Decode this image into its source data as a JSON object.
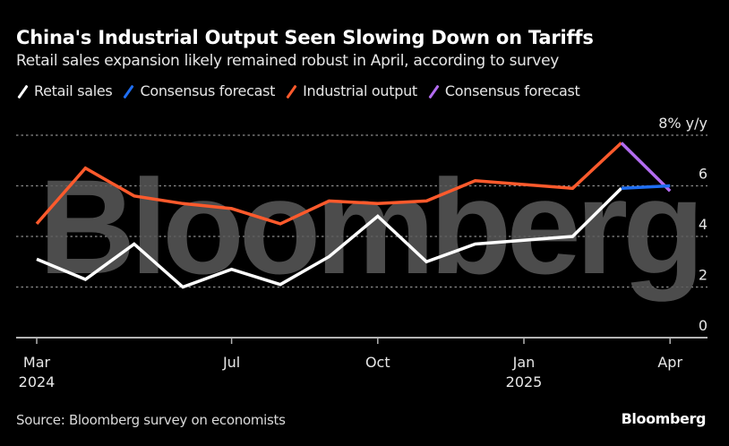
{
  "header": {
    "title": "China's Industrial Output Seen Slowing Down on Tariffs",
    "subtitle": "Retail sales expansion likely remained robust in April, according to survey"
  },
  "footer": {
    "source": "Source: Bloomberg survey on economists",
    "brand": "Bloomberg"
  },
  "watermark": "Bloomberg",
  "colors": {
    "background": "#000000",
    "retail_sales": "#ffffff",
    "retail_forecast": "#1f6ef2",
    "industrial_output": "#ff5a2c",
    "industrial_forecast": "#b36cf0",
    "grid": "#8c8c8c",
    "watermark": "#595959"
  },
  "chart_data": {
    "type": "line",
    "title": "China's Industrial Output Seen Slowing Down on Tariffs",
    "subtitle": "Retail sales expansion likely remained robust in April, according to survey",
    "xlabel": "",
    "ylabel": "% y/y",
    "y_unit_label": "8% y/y",
    "ylim": [
      0,
      8
    ],
    "yticks": [
      0,
      2,
      4,
      6,
      8
    ],
    "ytick_labels": [
      "0",
      "2",
      "4",
      "6",
      "8% y/y"
    ],
    "grid": true,
    "legend_position": "top-left",
    "x": [
      "Mar 2024",
      "Apr 2024",
      "May 2024",
      "Jun 2024",
      "Jul 2024",
      "Aug 2024",
      "Sep 2024",
      "Oct 2024",
      "Nov 2024",
      "Dec 2024",
      "Jan-Feb 2025",
      "Mar 2025",
      "Apr 2025"
    ],
    "x_month_index": [
      0,
      1,
      2,
      3,
      4,
      5,
      6,
      7,
      8,
      9,
      11,
      12,
      13
    ],
    "xticks": [
      {
        "label": "Mar",
        "sublabel": "2024",
        "month_index": -1
      },
      {
        "label": "Jul",
        "sublabel": "",
        "month_index": 3
      },
      {
        "label": "Oct",
        "sublabel": "",
        "month_index": 6
      },
      {
        "label": "Jan",
        "sublabel": "2025",
        "month_index": 9
      },
      {
        "label": "Apr",
        "sublabel": "",
        "month_index": 12
      }
    ],
    "x_range_months": [
      -1.1,
      13.9
    ],
    "series": [
      {
        "name": "Retail sales",
        "key": "retail_sales",
        "values": [
          3.1,
          2.3,
          3.7,
          2.0,
          2.7,
          2.1,
          3.2,
          4.8,
          3.0,
          3.7,
          4.0,
          5.9,
          null
        ]
      },
      {
        "name": "Consensus forecast",
        "key": "retail_forecast",
        "values": [
          null,
          null,
          null,
          null,
          null,
          null,
          null,
          null,
          null,
          null,
          null,
          5.9,
          6.0
        ]
      },
      {
        "name": "Industrial output",
        "key": "industrial_output",
        "values": [
          4.5,
          6.7,
          5.6,
          5.3,
          5.1,
          4.5,
          5.4,
          5.3,
          5.4,
          6.2,
          5.9,
          7.7,
          null
        ]
      },
      {
        "name": "Consensus forecast",
        "key": "industrial_forecast",
        "values": [
          null,
          null,
          null,
          null,
          null,
          null,
          null,
          null,
          null,
          null,
          null,
          7.7,
          5.8
        ]
      }
    ]
  }
}
